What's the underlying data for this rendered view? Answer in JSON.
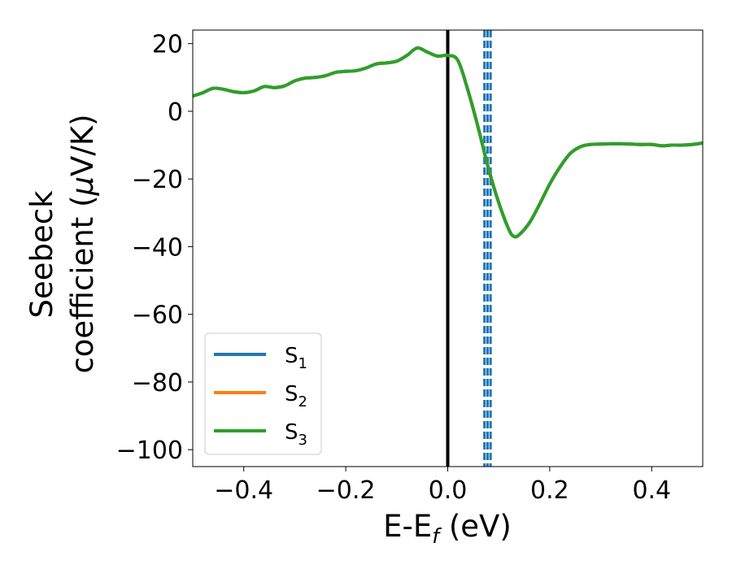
{
  "chart_data": {
    "type": "line",
    "xlabel": {
      "main": "E-E",
      "sub": "f",
      "unit": " (eV)"
    },
    "ylabel": {
      "line1": "Seebeck",
      "line2_prefix": "coefficient  (",
      "mu": "μ",
      "line2_suffix": "V/K)"
    },
    "xlim": [
      -0.5,
      0.5
    ],
    "ylim": [
      -105,
      24
    ],
    "xticks": [
      {
        "value": -0.4,
        "label": "−0.4"
      },
      {
        "value": -0.2,
        "label": "−0.2"
      },
      {
        "value": 0.0,
        "label": "0.0"
      },
      {
        "value": 0.2,
        "label": "0.2"
      },
      {
        "value": 0.4,
        "label": "0.4"
      }
    ],
    "yticks": [
      {
        "value": 20,
        "label": "20"
      },
      {
        "value": 0,
        "label": "0"
      },
      {
        "value": -20,
        "label": "−20"
      },
      {
        "value": -40,
        "label": "−40"
      },
      {
        "value": -60,
        "label": "−60"
      },
      {
        "value": -80,
        "label": "−80"
      },
      {
        "value": -100,
        "label": "−100"
      }
    ],
    "grid": false,
    "legend_position": "lower-left",
    "series": [
      {
        "name": "S",
        "sub": "1",
        "color": "#1f77b4"
      },
      {
        "name": "S",
        "sub": "2",
        "color": "#ff7f0e"
      },
      {
        "name": "S",
        "sub": "3",
        "color": "#2ca02c"
      }
    ],
    "curve": {
      "x": [
        -0.5,
        -0.48,
        -0.46,
        -0.44,
        -0.42,
        -0.4,
        -0.38,
        -0.36,
        -0.34,
        -0.32,
        -0.3,
        -0.28,
        -0.26,
        -0.24,
        -0.22,
        -0.2,
        -0.18,
        -0.16,
        -0.14,
        -0.12,
        -0.1,
        -0.08,
        -0.06,
        -0.04,
        -0.02,
        0.0,
        0.02,
        0.04,
        0.06,
        0.08,
        0.1,
        0.12,
        0.13,
        0.14,
        0.16,
        0.18,
        0.2,
        0.22,
        0.24,
        0.26,
        0.28,
        0.3,
        0.32,
        0.34,
        0.36,
        0.38,
        0.4,
        0.42,
        0.44,
        0.46,
        0.48,
        0.5
      ],
      "y": [
        4.5,
        5.5,
        6.8,
        6.5,
        5.8,
        5.5,
        6.0,
        7.3,
        7.0,
        7.5,
        9.0,
        9.8,
        10.0,
        10.5,
        11.5,
        11.8,
        12.0,
        12.8,
        14.0,
        14.3,
        14.8,
        16.5,
        18.7,
        17.5,
        16.3,
        16.5,
        15.0,
        6.0,
        -5.0,
        -17.0,
        -27.0,
        -35.0,
        -37.0,
        -36.5,
        -33.0,
        -27.5,
        -21.5,
        -16.5,
        -12.5,
        -10.5,
        -9.8,
        -9.7,
        -9.6,
        -9.6,
        -9.7,
        -9.8,
        -9.8,
        -10.2,
        -10.0,
        -10.0,
        -9.8,
        -9.4
      ]
    },
    "vertical_lines": [
      {
        "x": 0.0,
        "color": "#000000",
        "style": "solid"
      },
      {
        "x": 0.072,
        "color": "#1f77b4",
        "style": "dashed"
      },
      {
        "x": 0.078,
        "color": "#1f77b4",
        "style": "dashed"
      },
      {
        "x": 0.084,
        "color": "#1f77b4",
        "style": "dashed"
      }
    ]
  }
}
